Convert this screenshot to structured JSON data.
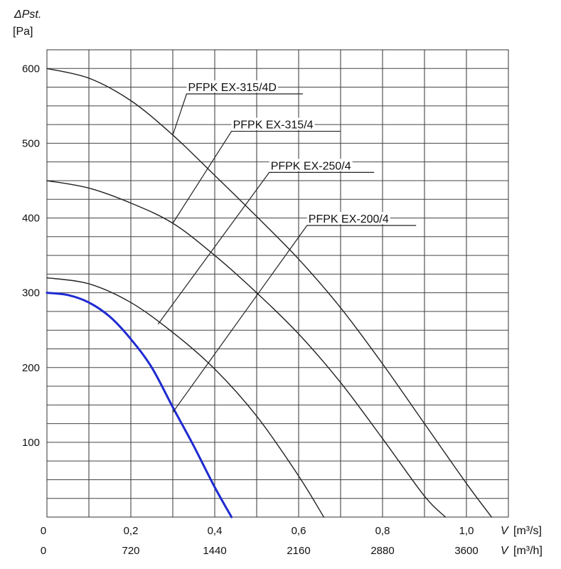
{
  "chart_data": {
    "type": "line",
    "ylabel_symbol": "ΔPst.",
    "ylabel_unit": "[Pa]",
    "xlabel_m3s_symbol": "V",
    "xlabel_m3s_unit": "[m³/s]",
    "xlabel_m3h_symbol": "V",
    "xlabel_m3h_unit": "[m³/h]",
    "xlim": [
      0,
      1.1
    ],
    "ylim": [
      0,
      625
    ],
    "x_ticks_m3s": [
      {
        "v": 0,
        "label": "0"
      },
      {
        "v": 0.2,
        "label": "0,2"
      },
      {
        "v": 0.4,
        "label": "0,4"
      },
      {
        "v": 0.6,
        "label": "0,6"
      },
      {
        "v": 0.8,
        "label": "0,8"
      },
      {
        "v": 1.0,
        "label": "1,0"
      }
    ],
    "x_ticks_m3h": [
      {
        "v": 0,
        "label": "0"
      },
      {
        "v": 0.2,
        "label": "720"
      },
      {
        "v": 0.4,
        "label": "1440"
      },
      {
        "v": 0.6,
        "label": "2160"
      },
      {
        "v": 0.8,
        "label": "2880"
      },
      {
        "v": 1.0,
        "label": "3600"
      }
    ],
    "y_ticks": [
      {
        "v": 100,
        "label": "100"
      },
      {
        "v": 200,
        "label": "200"
      },
      {
        "v": 300,
        "label": "300"
      },
      {
        "v": 400,
        "label": "400"
      },
      {
        "v": 500,
        "label": "500"
      },
      {
        "v": 600,
        "label": "600"
      }
    ],
    "grid": true,
    "series": [
      {
        "name": "PFPK EX-315/4D",
        "color": "#222222",
        "highlight": false,
        "x": [
          0,
          0.1,
          0.2,
          0.3,
          0.4,
          0.5,
          0.6,
          0.7,
          0.8,
          0.9,
          1.0,
          1.06
        ],
        "y": [
          600,
          587,
          557,
          511,
          457,
          402,
          345,
          280,
          205,
          125,
          45,
          0
        ]
      },
      {
        "name": "PFPK EX-315/4",
        "color": "#222222",
        "highlight": false,
        "x": [
          0,
          0.1,
          0.2,
          0.3,
          0.4,
          0.5,
          0.6,
          0.7,
          0.8,
          0.9,
          0.95
        ],
        "y": [
          450,
          440,
          420,
          393,
          350,
          300,
          245,
          180,
          105,
          28,
          0
        ]
      },
      {
        "name": "PFPK EX-250/4",
        "color": "#222222",
        "highlight": false,
        "x": [
          0,
          0.1,
          0.2,
          0.3,
          0.4,
          0.5,
          0.6,
          0.66
        ],
        "y": [
          320,
          312,
          287,
          247,
          198,
          135,
          55,
          0
        ]
      },
      {
        "name": "PFPK EX-200/4",
        "color": "#1f2bd1",
        "highlight": true,
        "x": [
          0,
          0.05,
          0.1,
          0.15,
          0.2,
          0.25,
          0.3,
          0.35,
          0.4,
          0.44
        ],
        "y": [
          300,
          297,
          287,
          268,
          238,
          200,
          147,
          95,
          40,
          0
        ]
      }
    ],
    "annotations": [
      {
        "series": 0,
        "text": "PFPK EX-315/4D",
        "at_x": 0.3,
        "at_y": 511,
        "label_x": 0.333,
        "label_y": 566,
        "line_end_x": 0.61
      },
      {
        "series": 1,
        "text": "PFPK EX-315/4",
        "at_x": 0.3,
        "at_y": 393,
        "label_x": 0.44,
        "label_y": 516,
        "line_end_x": 0.7
      },
      {
        "series": 2,
        "text": "PFPK EX-250/4",
        "at_x": 0.265,
        "at_y": 258,
        "label_x": 0.53,
        "label_y": 461,
        "line_end_x": 0.78
      },
      {
        "series": 3,
        "text": "PFPK EX-200/4",
        "at_x": 0.3,
        "at_y": 140,
        "label_x": 0.62,
        "label_y": 390,
        "line_end_x": 0.88
      }
    ]
  }
}
